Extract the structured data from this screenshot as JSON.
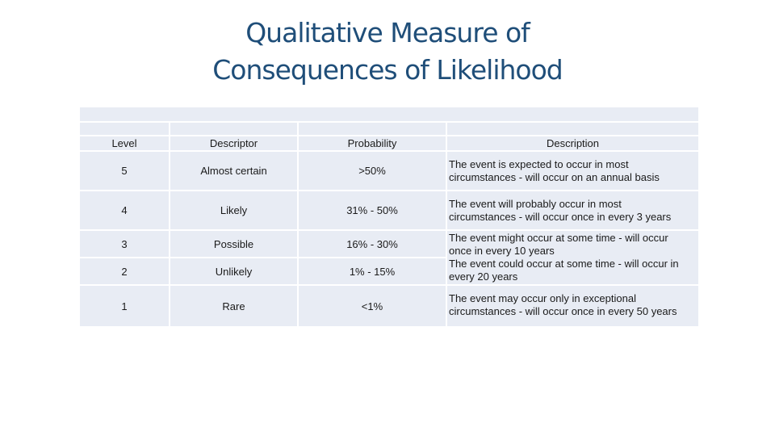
{
  "title": {
    "line1": "Qualitative Measure of",
    "line2": "Consequences of Likelihood"
  },
  "table": {
    "headers": [
      "Level",
      "Descriptor",
      "Probability",
      "Description"
    ],
    "rows": [
      {
        "level": "5",
        "descriptor": "Almost certain",
        "probability": ">50%",
        "description": "The event is expected to occur in most\ncircumstances - will occur on an annual basis"
      },
      {
        "level": "4",
        "descriptor": "Likely",
        "probability": "31% - 50%",
        "description": "The event will probably occur in most\ncircumstances - will occur once in every 3 years"
      },
      {
        "level": "3",
        "descriptor": "Possible",
        "probability": "16% - 30%",
        "description": "The event might occur at some time - will occur\nonce in every 10 years"
      },
      {
        "level": "2",
        "descriptor": "Unlikely",
        "probability": "1% - 15%",
        "description": "The event could occur at some time - will occur in\nevery 20 years"
      },
      {
        "level": "1",
        "descriptor": "Rare",
        "probability": "<1%",
        "description": "The event may occur only in exceptional\ncircumstances - will occur once in every 50 years"
      }
    ]
  },
  "colors": {
    "title": "#1f4e79",
    "cell_fill": "#e8ecf4"
  }
}
